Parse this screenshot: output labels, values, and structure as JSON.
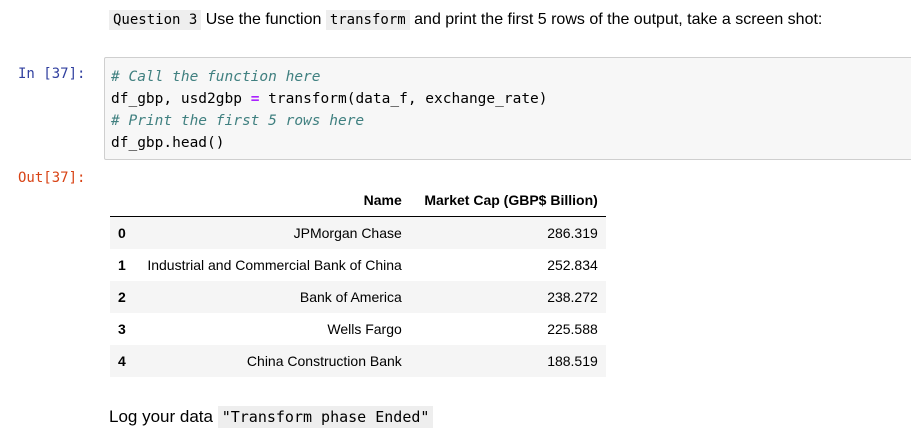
{
  "question": {
    "label": "Question 3",
    "text_1": "Use the function",
    "function_name": "transform",
    "text_2": "and print the first 5 rows of the output, take a screen shot:"
  },
  "input_cell": {
    "prompt": "In [37]:",
    "line1_comment": "# Call the function here",
    "line2_lhs": "df_gbp, usd2gbp",
    "line2_op": "=",
    "line2_rhs": "transform(data_f, exchange_rate)",
    "line3_comment": "# Print the first 5 rows here",
    "line4": "df_gbp.head()"
  },
  "output_cell": {
    "prompt": "Out[37]:",
    "table": {
      "columns": [
        "",
        "Name",
        "Market Cap (GBP$ Billion)"
      ],
      "rows": [
        {
          "index": "0",
          "name": "JPMorgan Chase",
          "cap": "286.319"
        },
        {
          "index": "1",
          "name": "Industrial and Commercial Bank of China",
          "cap": "252.834"
        },
        {
          "index": "2",
          "name": "Bank of America",
          "cap": "238.272"
        },
        {
          "index": "3",
          "name": "Wells Fargo",
          "cap": "225.588"
        },
        {
          "index": "4",
          "name": "China Construction Bank",
          "cap": "188.519"
        }
      ]
    }
  },
  "log_note": {
    "text": "Log your data",
    "code": "\"Transform phase Ended\""
  }
}
